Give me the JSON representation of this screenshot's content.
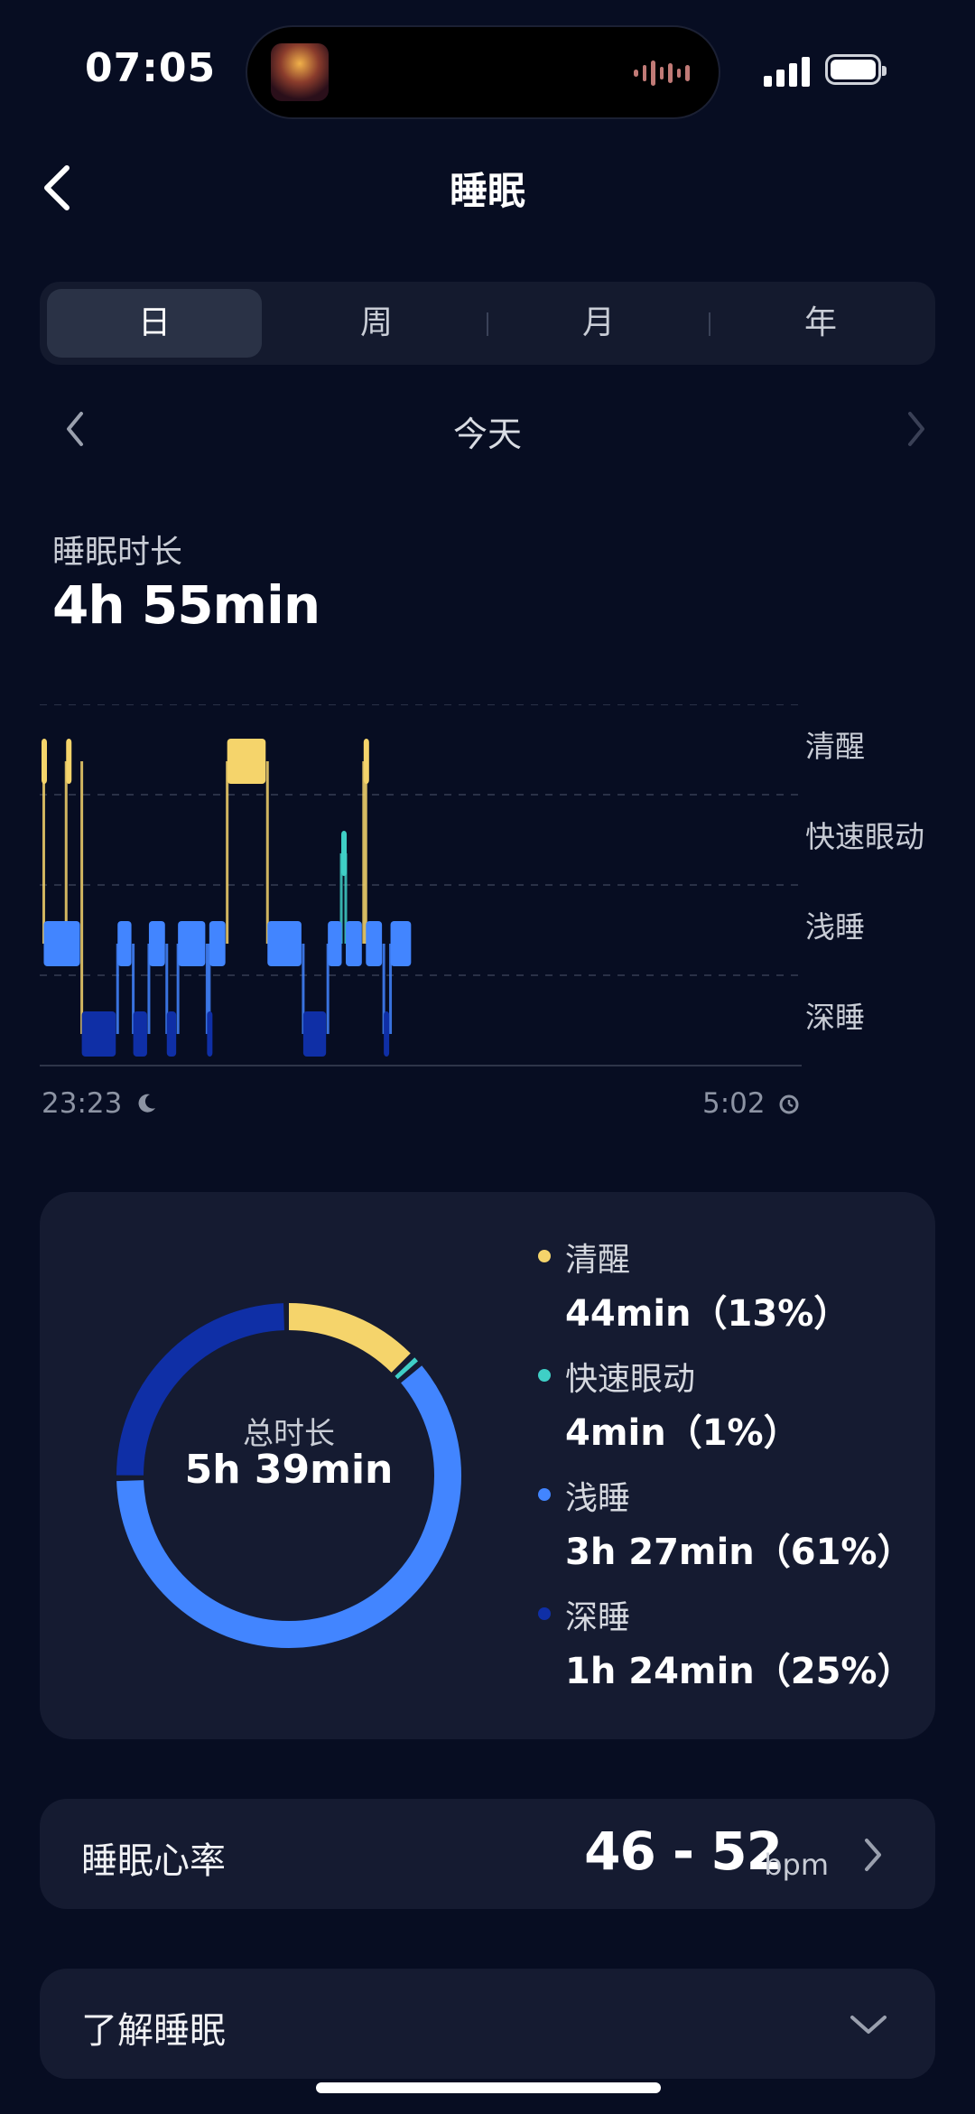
{
  "status": {
    "time": "07:05"
  },
  "header": {
    "title": "睡眠"
  },
  "tabs": [
    {
      "label": "日",
      "active": true
    },
    {
      "label": "周",
      "active": false
    },
    {
      "label": "月",
      "active": false
    },
    {
      "label": "年",
      "active": false
    }
  ],
  "date": {
    "label": "今天"
  },
  "duration": {
    "label": "睡眠时长",
    "value": "4h 55min"
  },
  "chart_data": {
    "type": "hypnogram",
    "stages": [
      "清醒",
      "快速眼动",
      "浅睡",
      "深睡"
    ],
    "colors": {
      "清醒": "#f5d46b",
      "快速眼动": "#3fcfc6",
      "浅睡": "#4285ff",
      "深睡": "#0f2fa6"
    },
    "start_label": "23:23",
    "end_label": "5:02",
    "x_range": [
      "23:23",
      "5:02"
    ],
    "grid": "dashed",
    "segments": [
      {
        "stage": "清醒",
        "start": "23:23",
        "end": "23:24"
      },
      {
        "stage": "浅睡",
        "start": "23:24",
        "end": "23:41"
      },
      {
        "stage": "清醒",
        "start": "23:34",
        "end": "23:35"
      },
      {
        "stage": "深睡",
        "start": "23:41",
        "end": "23:57"
      },
      {
        "stage": "浅睡",
        "start": "23:57",
        "end": "00:04"
      },
      {
        "stage": "深睡",
        "start": "00:04",
        "end": "00:11"
      },
      {
        "stage": "浅睡",
        "start": "00:11",
        "end": "00:19"
      },
      {
        "stage": "深睡",
        "start": "00:19",
        "end": "00:24"
      },
      {
        "stage": "浅睡",
        "start": "00:24",
        "end": "00:37"
      },
      {
        "stage": "深睡",
        "start": "00:37",
        "end": "00:38"
      },
      {
        "stage": "浅睡",
        "start": "00:38",
        "end": "00:46"
      },
      {
        "stage": "清醒",
        "start": "00:46",
        "end": "01:04"
      },
      {
        "stage": "浅睡",
        "start": "01:04",
        "end": "01:20"
      },
      {
        "stage": "深睡",
        "start": "01:20",
        "end": "01:31"
      },
      {
        "stage": "浅睡",
        "start": "01:31",
        "end": "01:38"
      },
      {
        "stage": "快速眼动",
        "start": "01:37",
        "end": "01:39"
      },
      {
        "stage": "浅睡",
        "start": "01:39",
        "end": "01:47"
      },
      {
        "stage": "清醒",
        "start": "01:47",
        "end": "01:48"
      },
      {
        "stage": "浅睡",
        "start": "01:48",
        "end": "01:56"
      },
      {
        "stage": "深睡",
        "start": "01:56",
        "end": "01:59"
      },
      {
        "stage": "浅睡",
        "start": "01:59",
        "end": "02:09"
      }
    ]
  },
  "summary": {
    "total_label": "总时长",
    "total_value": "5h 39min",
    "items": [
      {
        "name": "清醒",
        "value": "44min（13%）",
        "percent": 13,
        "color": "#f5d46b"
      },
      {
        "name": "快速眼动",
        "value": "4min（1%）",
        "percent": 1,
        "color": "#3fcfc6"
      },
      {
        "name": "浅睡",
        "value": "3h 27min（61%）",
        "percent": 61,
        "color": "#4285ff"
      },
      {
        "name": "深睡",
        "value": "1h 24min（25%）",
        "percent": 25,
        "color": "#0f2fa6"
      }
    ]
  },
  "heart_rate": {
    "label": "睡眠心率",
    "value": "46 - 52",
    "unit": "bpm"
  },
  "learn": {
    "label": "了解睡眠"
  }
}
